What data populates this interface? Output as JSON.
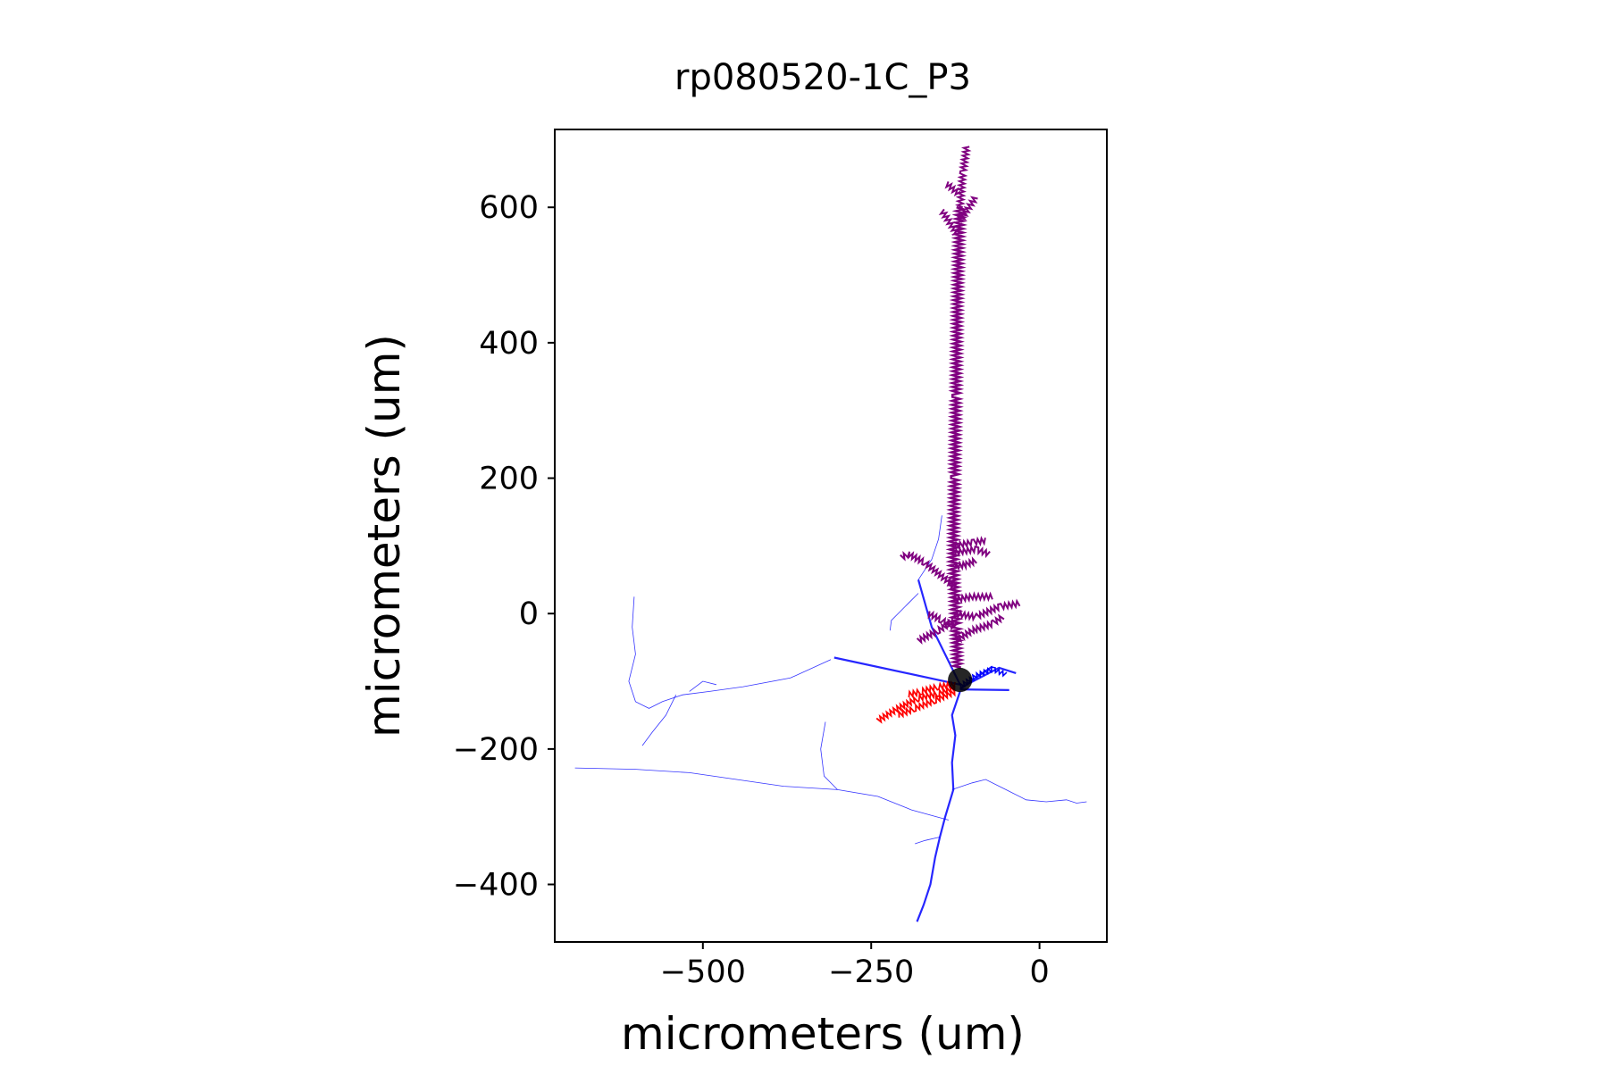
{
  "chart_data": {
    "type": "morphology",
    "title": "rp080520-1C_P3",
    "xlabel": "micrometers (um)",
    "ylabel": "micrometers (um)",
    "xlim": [
      -720,
      100
    ],
    "ylim": [
      -485,
      715
    ],
    "xticks": [
      -500,
      -250,
      0
    ],
    "yticks": [
      -400,
      -200,
      0,
      200,
      400,
      600
    ],
    "grid": false,
    "legend": "none",
    "colors": {
      "apical_dendrite": "#800080",
      "basal_dendrite": "#ff0000",
      "axon": "#0000ff",
      "soma": "#000000"
    },
    "soma": {
      "x": -118,
      "y": -98,
      "radius": 18
    },
    "apical_dendrite": [
      [
        [
          -122,
          -80
        ],
        [
          -124,
          -20
        ],
        [
          -128,
          80
        ],
        [
          -126,
          200
        ],
        [
          -124,
          320
        ],
        [
          -122,
          460
        ],
        [
          -120,
          540
        ],
        [
          -118,
          600
        ]
      ],
      [
        [
          -118,
          600
        ],
        [
          -114,
          650
        ],
        [
          -108,
          690
        ]
      ],
      [
        [
          -122,
          560
        ],
        [
          -145,
          595
        ]
      ],
      [
        [
          -118,
          580
        ],
        [
          -95,
          615
        ]
      ],
      [
        [
          -120,
          620
        ],
        [
          -138,
          635
        ]
      ],
      [
        [
          -126,
          40
        ],
        [
          -145,
          55
        ],
        [
          -170,
          75
        ],
        [
          -195,
          88
        ],
        [
          -205,
          83
        ]
      ],
      [
        [
          -126,
          90
        ],
        [
          -95,
          95
        ],
        [
          -75,
          88
        ]
      ],
      [
        [
          -126,
          100
        ],
        [
          -100,
          105
        ],
        [
          -80,
          108
        ]
      ],
      [
        [
          -126,
          70
        ],
        [
          -110,
          72
        ],
        [
          -95,
          78
        ]
      ],
      [
        [
          -128,
          20
        ],
        [
          -100,
          25
        ],
        [
          -70,
          25
        ]
      ],
      [
        [
          -126,
          0
        ],
        [
          -95,
          -5
        ],
        [
          -60,
          10
        ],
        [
          -30,
          15
        ]
      ],
      [
        [
          -128,
          -10
        ],
        [
          -150,
          -25
        ],
        [
          -180,
          -40
        ]
      ],
      [
        [
          -124,
          -40
        ],
        [
          -100,
          -25
        ],
        [
          -70,
          -15
        ],
        [
          -55,
          -5
        ]
      ],
      [
        [
          -126,
          -20
        ],
        [
          -145,
          -10
        ],
        [
          -165,
          0
        ]
      ]
    ],
    "basal_dendrite": [
      [
        [
          -125,
          -110
        ],
        [
          -150,
          -118
        ],
        [
          -180,
          -125
        ],
        [
          -210,
          -140
        ],
        [
          -240,
          -158
        ]
      ],
      [
        [
          -125,
          -115
        ],
        [
          -155,
          -128
        ],
        [
          -185,
          -140
        ],
        [
          -210,
          -150
        ]
      ],
      [
        [
          -125,
          -105
        ],
        [
          -150,
          -108
        ],
        [
          -175,
          -115
        ],
        [
          -195,
          -120
        ]
      ]
    ],
    "axon_main": [
      [
        [
          -118,
          -115
        ],
        [
          -130,
          -150
        ],
        [
          -125,
          -180
        ],
        [
          -130,
          -220
        ],
        [
          -128,
          -260
        ],
        [
          -140,
          -300
        ],
        [
          -148,
          -330
        ],
        [
          -155,
          -360
        ],
        [
          -162,
          -400
        ],
        [
          -172,
          -430
        ],
        [
          -182,
          -455
        ]
      ],
      [
        [
          -118,
          -105
        ],
        [
          -160,
          -20
        ],
        [
          -180,
          50
        ]
      ],
      [
        [
          -118,
          -105
        ],
        [
          -305,
          -65
        ]
      ],
      [
        [
          -118,
          -110
        ],
        [
          -60,
          -80
        ],
        [
          -35,
          -88
        ]
      ],
      [
        [
          -118,
          -112
        ],
        [
          -45,
          -113
        ]
      ],
      [
        [
          -118,
          -112
        ],
        [
          -95,
          -95
        ],
        [
          -70,
          -78
        ]
      ]
    ],
    "axon_thin": [
      [
        [
          -135,
          -305
        ],
        [
          -190,
          -290
        ],
        [
          -240,
          -270
        ],
        [
          -300,
          -260
        ],
        [
          -380,
          -255
        ],
        [
          -450,
          -245
        ],
        [
          -520,
          -235
        ],
        [
          -600,
          -230
        ],
        [
          -690,
          -228
        ]
      ],
      [
        [
          -300,
          -260
        ],
        [
          -320,
          -240
        ],
        [
          -325,
          -200
        ],
        [
          -318,
          -160
        ]
      ],
      [
        [
          -180,
          50
        ],
        [
          -160,
          80
        ],
        [
          -150,
          110
        ],
        [
          -145,
          145
        ]
      ],
      [
        [
          -180,
          30
        ],
        [
          -200,
          10
        ],
        [
          -220,
          -10
        ],
        [
          -222,
          -25
        ]
      ],
      [
        [
          -310,
          -68
        ],
        [
          -370,
          -95
        ],
        [
          -440,
          -108
        ],
        [
          -490,
          -115
        ],
        [
          -530,
          -120
        ],
        [
          -560,
          -130
        ],
        [
          -580,
          -140
        ],
        [
          -600,
          -130
        ],
        [
          -610,
          -100
        ],
        [
          -600,
          -60
        ],
        [
          -605,
          -20
        ],
        [
          -602,
          25
        ]
      ],
      [
        [
          -540,
          -120
        ],
        [
          -555,
          -150
        ],
        [
          -575,
          -175
        ],
        [
          -590,
          -195
        ]
      ],
      [
        [
          -520,
          -115
        ],
        [
          -500,
          -100
        ],
        [
          -480,
          -105
        ]
      ],
      [
        [
          -130,
          -260
        ],
        [
          -100,
          -250
        ],
        [
          -80,
          -245
        ],
        [
          -50,
          -260
        ],
        [
          -20,
          -275
        ],
        [
          10,
          -278
        ],
        [
          40,
          -275
        ],
        [
          55,
          -280
        ],
        [
          70,
          -278
        ]
      ],
      [
        [
          -148,
          -330
        ],
        [
          -170,
          -335
        ],
        [
          -185,
          -340
        ]
      ]
    ]
  }
}
